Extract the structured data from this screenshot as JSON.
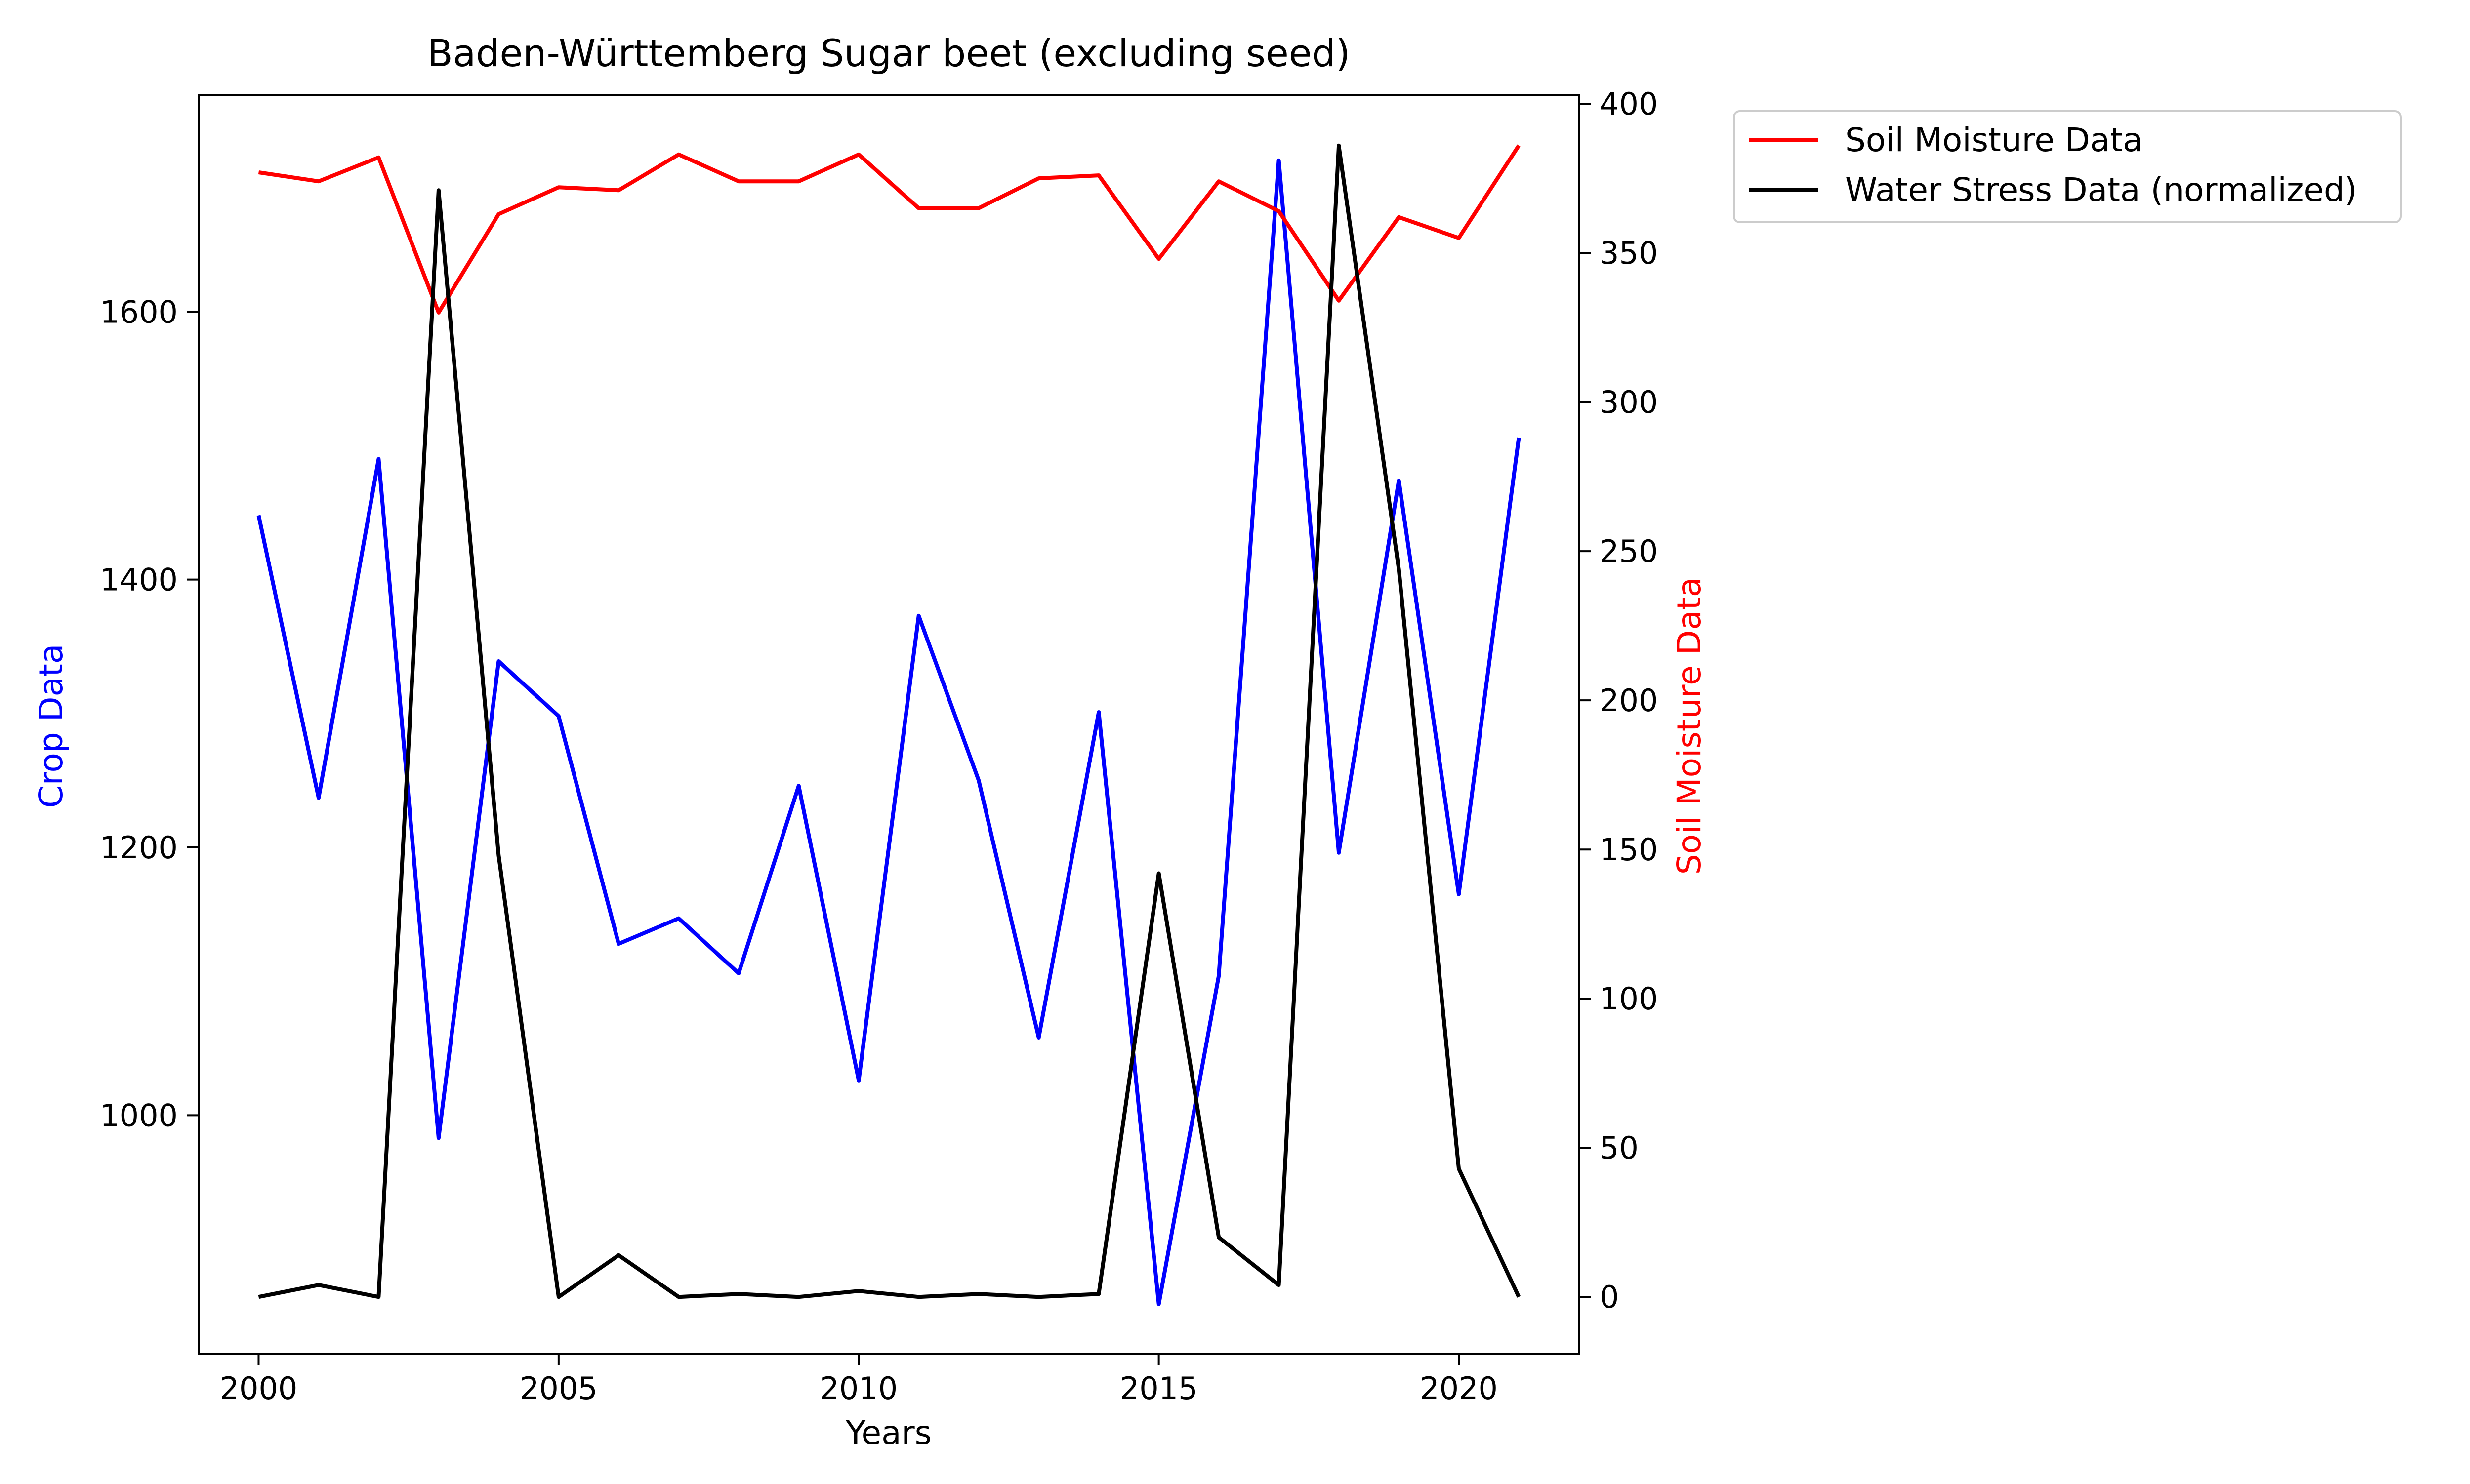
{
  "chart_data": {
    "type": "line",
    "title": "Baden-Württemberg Sugar beet (excluding seed)",
    "xlabel": "Years",
    "ylabel_left": "Crop Data",
    "ylabel_right": "Soil Moisture Data",
    "xlim": [
      1999,
      2022
    ],
    "ylim_left": [
      822,
      1762
    ],
    "ylim_right": [
      -19,
      403
    ],
    "x_ticks": [
      2000,
      2005,
      2010,
      2015,
      2020
    ],
    "y_left_ticks": [
      1000,
      1200,
      1400,
      1600
    ],
    "y_right_ticks": [
      0,
      50,
      100,
      150,
      200,
      250,
      300,
      350,
      400
    ],
    "grid": false,
    "legend_position": "outside-right",
    "legend": [
      "Soil Moisture Data",
      "Water Stress Data (normalized)"
    ],
    "x": [
      2000,
      2001,
      2002,
      2003,
      2004,
      2005,
      2006,
      2007,
      2008,
      2009,
      2010,
      2011,
      2012,
      2013,
      2014,
      2015,
      2016,
      2017,
      2018,
      2019,
      2020,
      2021
    ],
    "series": [
      {
        "axis": "left",
        "color": "#0000ff",
        "values": [
          1448,
          1237,
          1490,
          983,
          1339,
          1298,
          1128,
          1147,
          1106,
          1246,
          1026,
          1373,
          1250,
          1058,
          1301,
          859,
          1104,
          1713,
          1196,
          1474,
          1165,
          1506
        ]
      },
      {
        "name": "Soil Moisture Data",
        "axis": "right",
        "color": "#ff0000",
        "values": [
          377,
          374,
          382,
          330,
          363,
          372,
          371,
          383,
          374,
          374,
          383,
          365,
          365,
          375,
          376,
          348,
          374,
          364,
          334,
          362,
          355,
          386
        ]
      },
      {
        "name": "Water Stress Data (normalized)",
        "axis": "right",
        "color": "#000000",
        "values": [
          0,
          4,
          0,
          371,
          148,
          0,
          14,
          0,
          1,
          0,
          2,
          0,
          1,
          0,
          1,
          142,
          20,
          4,
          386,
          244,
          43,
          0
        ]
      }
    ]
  }
}
